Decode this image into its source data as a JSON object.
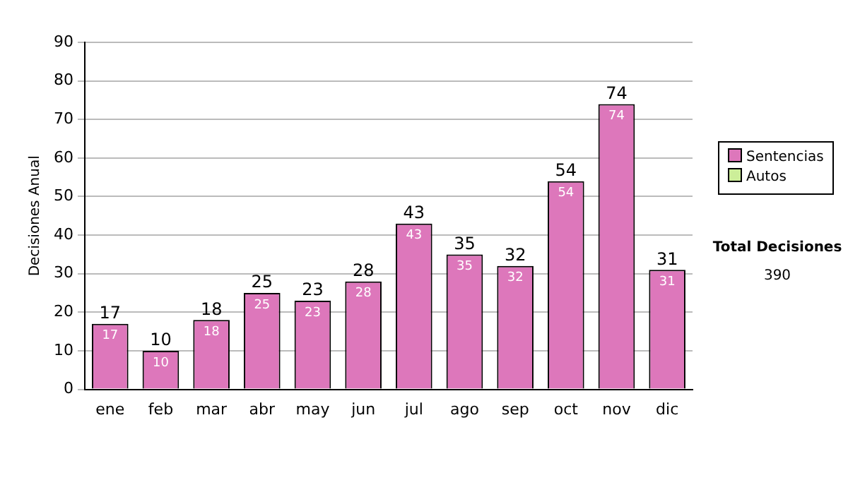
{
  "chart_data": {
    "type": "bar",
    "ylabel": "Decisiones Anual",
    "categories": [
      "ene",
      "feb",
      "mar",
      "abr",
      "may",
      "jun",
      "jul",
      "ago",
      "sep",
      "oct",
      "nov",
      "dic"
    ],
    "series": [
      {
        "name": "Sentencias",
        "color": "#dd77bb",
        "values": [
          17,
          10,
          18,
          25,
          23,
          28,
          43,
          35,
          32,
          54,
          74,
          31
        ]
      },
      {
        "name": "Autos",
        "color": "#ccee99",
        "values": [
          null,
          null,
          null,
          null,
          null,
          null,
          null,
          null,
          null,
          null,
          null,
          null
        ]
      }
    ],
    "stacked": true,
    "ylim": [
      0,
      90
    ],
    "yticks": [
      0,
      10,
      20,
      30,
      40,
      50,
      60,
      70,
      80,
      90
    ],
    "grid": "y",
    "legend": "right",
    "data_labels": true,
    "totals": [
      "17",
      "10",
      "18",
      "25",
      "23",
      "28",
      "43",
      "35",
      "32",
      "54",
      "74",
      "31"
    ],
    "annotations": [
      "Total Decisiones",
      "390"
    ]
  }
}
